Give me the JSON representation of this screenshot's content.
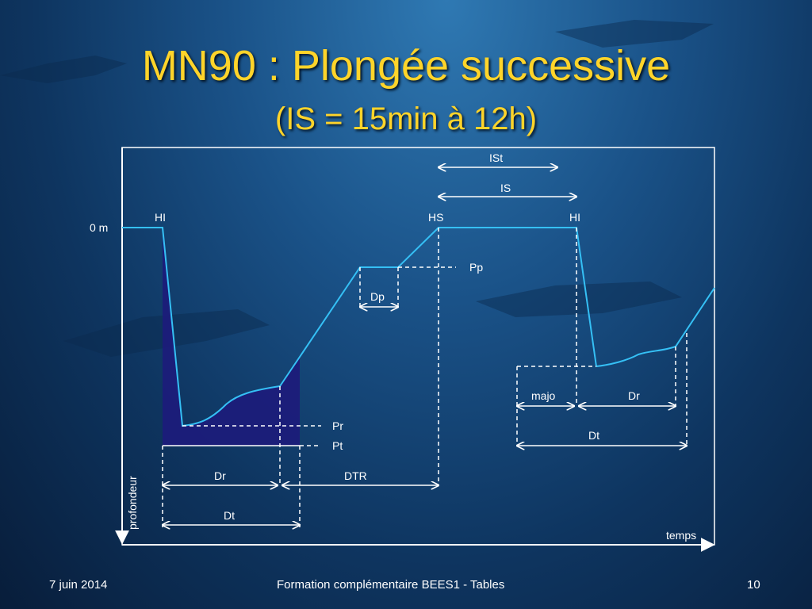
{
  "slide": {
    "title": "MN90 : Plongée successive",
    "subtitle": "(IS = 15min à 12h)"
  },
  "diagram": {
    "labels": {
      "ist": "ISt",
      "is": "IS",
      "hi_1": "HI",
      "hs": "HS",
      "hi_2": "HI",
      "zero_m": "0 m",
      "pp": "Pp",
      "dp": "Dp",
      "pr": "Pr",
      "pt": "Pt",
      "dr_1": "Dr",
      "dtr": "DTR",
      "dt_1": "Dt",
      "majo": "majo",
      "dr_2": "Dr",
      "dt_2": "Dt",
      "profondeur": "profondeur",
      "temps": "temps"
    },
    "colors": {
      "profile": "#35c0f5",
      "fill": "#1c1c7a",
      "lines": "#ffffff"
    }
  },
  "footer": {
    "date": "7 juin 2014",
    "center": "Formation complémentaire BEES1 - Tables",
    "page": "10"
  }
}
